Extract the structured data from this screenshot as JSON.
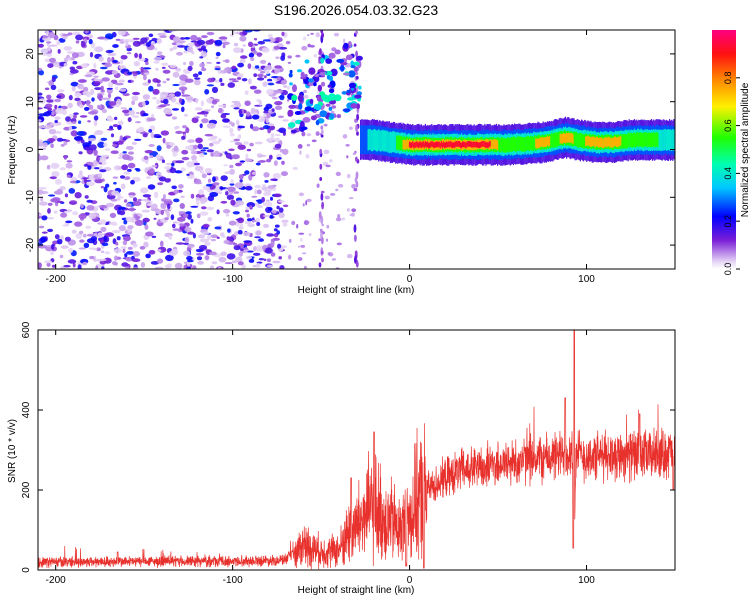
{
  "figure_title": "S196.2026.054.03.32.G23",
  "chart_data": [
    {
      "type": "heatmap",
      "title": "S196.2026.054.03.32.G23",
      "xlabel": "Height of straight line (km)",
      "ylabel": "Frequency (Hz)",
      "xlim": [
        -210,
        150
      ],
      "ylim": [
        -25,
        25
      ],
      "xticks": [
        -200,
        -100,
        0,
        100
      ],
      "yticks": [
        -20,
        -10,
        0,
        10,
        20
      ],
      "colorbar": {
        "label": "Normalized spectral amplitude",
        "range": [
          0,
          1
        ],
        "ticks": [
          0.0,
          0.2,
          0.4,
          0.6,
          0.8
        ],
        "colormap": [
          "#ffffff",
          "#6a0dad",
          "#0000ff",
          "#00ffff",
          "#00ff00",
          "#ffff00",
          "#ff8000",
          "#ff0000",
          "#ff0080"
        ]
      },
      "noise_region": {
        "x_range": [
          -210,
          -70
        ],
        "freq_range": [
          -25,
          25
        ],
        "amplitude": "low (0.05–0.25)"
      },
      "features": [
        {
          "name": "carrier-track",
          "x_range": [
            -28,
            150
          ],
          "freq_hz": 1,
          "peak_amplitude": 0.95,
          "peak_x_range": [
            0,
            45
          ]
        },
        {
          "name": "early-signal-cluster",
          "x_range": [
            -68,
            -28
          ],
          "freq_range": [
            2,
            22
          ]
        },
        {
          "name": "vertical-artifact",
          "x": -30,
          "freq_range": [
            -25,
            25
          ]
        },
        {
          "name": "vertical-artifact",
          "x": -50,
          "freq_range": [
            -25,
            25
          ]
        }
      ],
      "carrier_track": [
        {
          "x": -28,
          "f": 2.0,
          "a": 0.3
        },
        {
          "x": -20,
          "f": 2.0,
          "a": 0.4
        },
        {
          "x": -10,
          "f": 1.5,
          "a": 0.4
        },
        {
          "x": 0,
          "f": 1.0,
          "a": 0.9
        },
        {
          "x": 10,
          "f": 1.0,
          "a": 0.9
        },
        {
          "x": 20,
          "f": 1.0,
          "a": 0.95
        },
        {
          "x": 30,
          "f": 1.0,
          "a": 0.95
        },
        {
          "x": 45,
          "f": 1.0,
          "a": 0.9
        },
        {
          "x": 55,
          "f": 1.0,
          "a": 0.5
        },
        {
          "x": 65,
          "f": 1.2,
          "a": 0.5
        },
        {
          "x": 75,
          "f": 1.5,
          "a": 0.85
        },
        {
          "x": 82,
          "f": 2.0,
          "a": 0.6
        },
        {
          "x": 88,
          "f": 2.5,
          "a": 0.85
        },
        {
          "x": 95,
          "f": 2.0,
          "a": 0.6
        },
        {
          "x": 105,
          "f": 1.5,
          "a": 0.85
        },
        {
          "x": 115,
          "f": 1.5,
          "a": 0.85
        },
        {
          "x": 125,
          "f": 2.0,
          "a": 0.5
        },
        {
          "x": 140,
          "f": 2.0,
          "a": 0.5
        },
        {
          "x": 150,
          "f": 2.0,
          "a": 0.4
        }
      ]
    },
    {
      "type": "line",
      "title": "",
      "xlabel": "Height of straight line (km)",
      "ylabel": "SNR (10 * v/v)",
      "xlim": [
        -210,
        150
      ],
      "ylim": [
        0,
        600
      ],
      "xticks": [
        -200,
        -100,
        0,
        100
      ],
      "yticks": [
        0,
        200,
        400,
        600
      ],
      "color": "#e8312c",
      "series": [
        {
          "name": "SNR",
          "x": [
            -210,
            -100,
            -70,
            -62,
            -60,
            -50,
            -40,
            -35,
            -30,
            -25,
            -20,
            -15,
            -10,
            -5,
            0,
            5,
            10,
            20,
            30,
            40,
            50,
            60,
            70,
            80,
            88,
            92,
            93,
            94,
            96,
            100,
            110,
            120,
            130,
            140,
            150
          ],
          "values": [
            20,
            22,
            25,
            55,
            65,
            45,
            50,
            90,
            110,
            140,
            160,
            130,
            120,
            100,
            130,
            180,
            200,
            230,
            250,
            255,
            265,
            270,
            280,
            280,
            290,
            300,
            60,
            280,
            290,
            280,
            285,
            290,
            285,
            290,
            295
          ],
          "spikes": [
            {
              "x": -20,
              "value": 345
            },
            {
              "x": -33,
              "value": 230
            },
            {
              "x": 93,
              "value": 600
            },
            {
              "x": 88,
              "value": 430
            },
            {
              "x": 130,
              "value": 390
            },
            {
              "x": -165,
              "value": 45
            }
          ],
          "dips": [
            {
              "x": -2,
              "value": 10
            },
            {
              "x": 8,
              "value": 5
            },
            {
              "x": 92.5,
              "value": 55
            },
            {
              "x": 149,
              "value": 200
            }
          ]
        }
      ]
    }
  ]
}
